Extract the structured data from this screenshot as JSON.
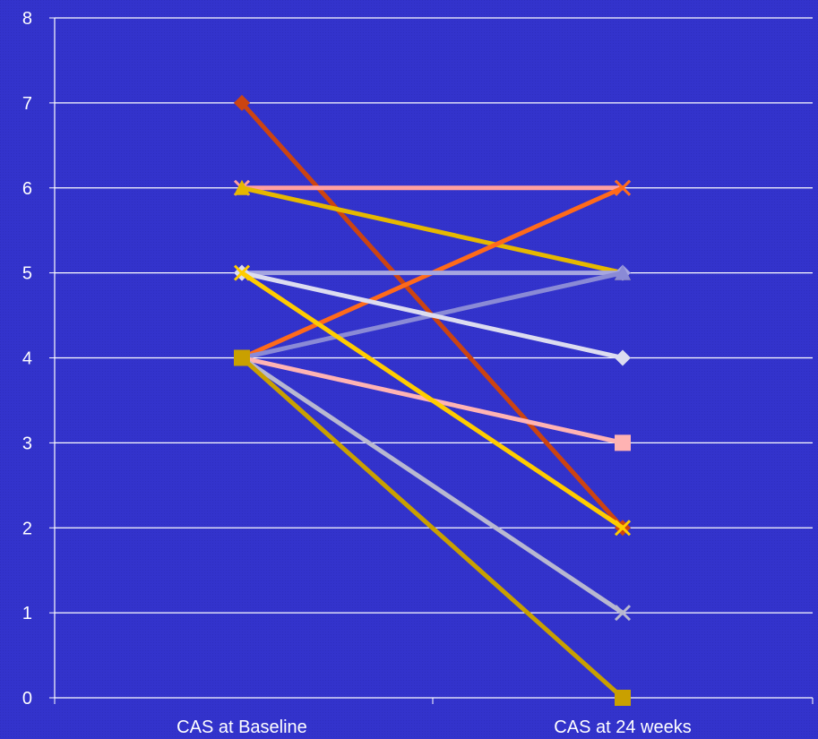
{
  "chart_data": {
    "type": "line",
    "title": "",
    "xlabel": "",
    "ylabel": "",
    "categories": [
      "CAS at Baseline",
      "CAS at 24 weeks"
    ],
    "ylim": [
      0,
      8
    ],
    "yticks": [
      "0",
      "1",
      "2",
      "3",
      "4",
      "5",
      "6",
      "7",
      "8"
    ],
    "grid": true,
    "legend": "none",
    "background_color": "#3333cc",
    "grid_color": "#ffffff",
    "series": [
      {
        "values": [
          7,
          2
        ],
        "color": "#cc4411",
        "marker": "diamond"
      },
      {
        "values": [
          6,
          6
        ],
        "color": "#ffa0a0",
        "marker": "x"
      },
      {
        "values": [
          6,
          5
        ],
        "color": "#e6b800",
        "marker": "triangle"
      },
      {
        "values": [
          4,
          6
        ],
        "color": "#ff6a1a",
        "marker": "x"
      },
      {
        "values": [
          5,
          5
        ],
        "color": "#a6a6e0",
        "marker": "diamond"
      },
      {
        "values": [
          4,
          5
        ],
        "color": "#8a8ad6",
        "marker": "triangle"
      },
      {
        "values": [
          5,
          4
        ],
        "color": "#dcdcf0",
        "marker": "diamond"
      },
      {
        "values": [
          4,
          3
        ],
        "color": "#ffb3b3",
        "marker": "square"
      },
      {
        "values": [
          5,
          2
        ],
        "color": "#ffcc00",
        "marker": "x"
      },
      {
        "values": [
          4,
          1
        ],
        "color": "#b8b8d0",
        "marker": "x"
      },
      {
        "values": [
          4,
          0
        ],
        "color": "#c9a000",
        "marker": "square"
      }
    ]
  }
}
